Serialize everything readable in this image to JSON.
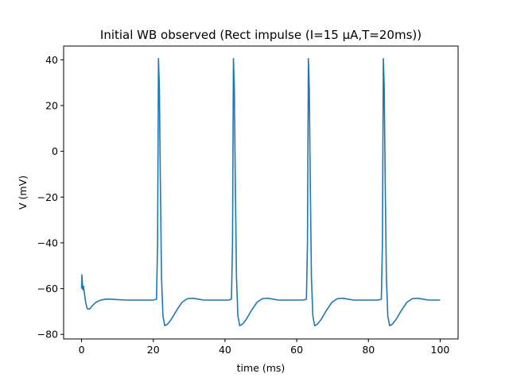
{
  "chart_data": {
    "type": "line",
    "title": "Initial WB observed (Rect impulse (I=15 µA,T=20ms))",
    "xlabel": "time (ms)",
    "ylabel": "V (mV)",
    "xlim": [
      -5,
      105
    ],
    "ylim": [
      -82,
      46
    ],
    "xticks": [
      0,
      20,
      40,
      60,
      80,
      100
    ],
    "xtick_labels": [
      "0",
      "20",
      "40",
      "60",
      "80",
      "100"
    ],
    "yticks": [
      -80,
      -60,
      -40,
      -20,
      0,
      20,
      40
    ],
    "ytick_labels": [
      "−80",
      "−60",
      "−40",
      "−20",
      "0",
      "20",
      "40"
    ],
    "grid": false,
    "series": [
      {
        "color": "#1f77b4",
        "x": [
          0,
          0.1,
          0.2,
          0.35,
          0.55,
          0.8,
          1.2,
          1.6,
          2.2,
          3.0,
          4.0,
          5.0,
          6.0,
          7.0,
          8.0,
          10.0,
          12.0,
          15.0,
          18.0,
          20.0,
          20.9,
          21.2,
          21.45,
          21.7,
          21.95,
          22.3,
          22.7,
          23.2,
          24.0,
          25.0,
          26.5,
          28.0,
          29.5,
          31.0,
          32.5,
          34.0,
          35.5,
          37.0,
          39.0,
          41.0,
          41.8,
          42.1,
          42.35,
          42.6,
          42.85,
          43.2,
          43.6,
          44.1,
          44.9,
          45.9,
          47.4,
          48.9,
          50.4,
          51.9,
          53.4,
          54.9,
          56.4,
          57.9,
          59.9,
          61.9,
          62.7,
          63.0,
          63.25,
          63.5,
          63.75,
          64.1,
          64.5,
          65.0,
          65.8,
          66.8,
          68.3,
          69.8,
          71.3,
          72.8,
          74.3,
          75.8,
          77.3,
          78.8,
          80.8,
          82.8,
          83.6,
          83.9,
          84.15,
          84.4,
          84.65,
          85.0,
          85.4,
          85.9,
          86.7,
          87.7,
          89.2,
          90.7,
          92.2,
          93.7,
          95.2,
          96.7,
          98.2,
          100.0
        ],
        "y": [
          -60.0,
          -54.0,
          -57.0,
          -60.5,
          -59.0,
          -62.0,
          -66.5,
          -68.8,
          -69.0,
          -67.5,
          -66.0,
          -65.2,
          -64.8,
          -64.6,
          -64.6,
          -64.8,
          -65.0,
          -65.0,
          -65.0,
          -65.0,
          -64.6,
          -40.0,
          40.5,
          28.0,
          -10.0,
          -55.0,
          -72.0,
          -76.2,
          -75.5,
          -73.5,
          -69.5,
          -66.0,
          -64.4,
          -64.2,
          -64.6,
          -65.0,
          -65.0,
          -65.0,
          -65.0,
          -65.0,
          -64.6,
          -40.0,
          40.5,
          28.0,
          -10.0,
          -55.0,
          -72.0,
          -76.2,
          -75.5,
          -73.5,
          -69.5,
          -66.0,
          -64.4,
          -64.2,
          -64.6,
          -65.0,
          -65.0,
          -65.0,
          -65.0,
          -65.0,
          -64.6,
          -40.0,
          40.5,
          28.0,
          -10.0,
          -55.0,
          -72.0,
          -76.2,
          -75.5,
          -73.5,
          -69.5,
          -66.0,
          -64.4,
          -64.2,
          -64.6,
          -65.0,
          -65.0,
          -65.0,
          -65.0,
          -65.0,
          -64.6,
          -40.0,
          40.5,
          28.0,
          -10.0,
          -55.0,
          -72.0,
          -76.2,
          -75.5,
          -73.5,
          -69.5,
          -66.0,
          -64.4,
          -64.2,
          -64.6,
          -65.0,
          -65.0,
          -65.0
        ]
      }
    ]
  }
}
